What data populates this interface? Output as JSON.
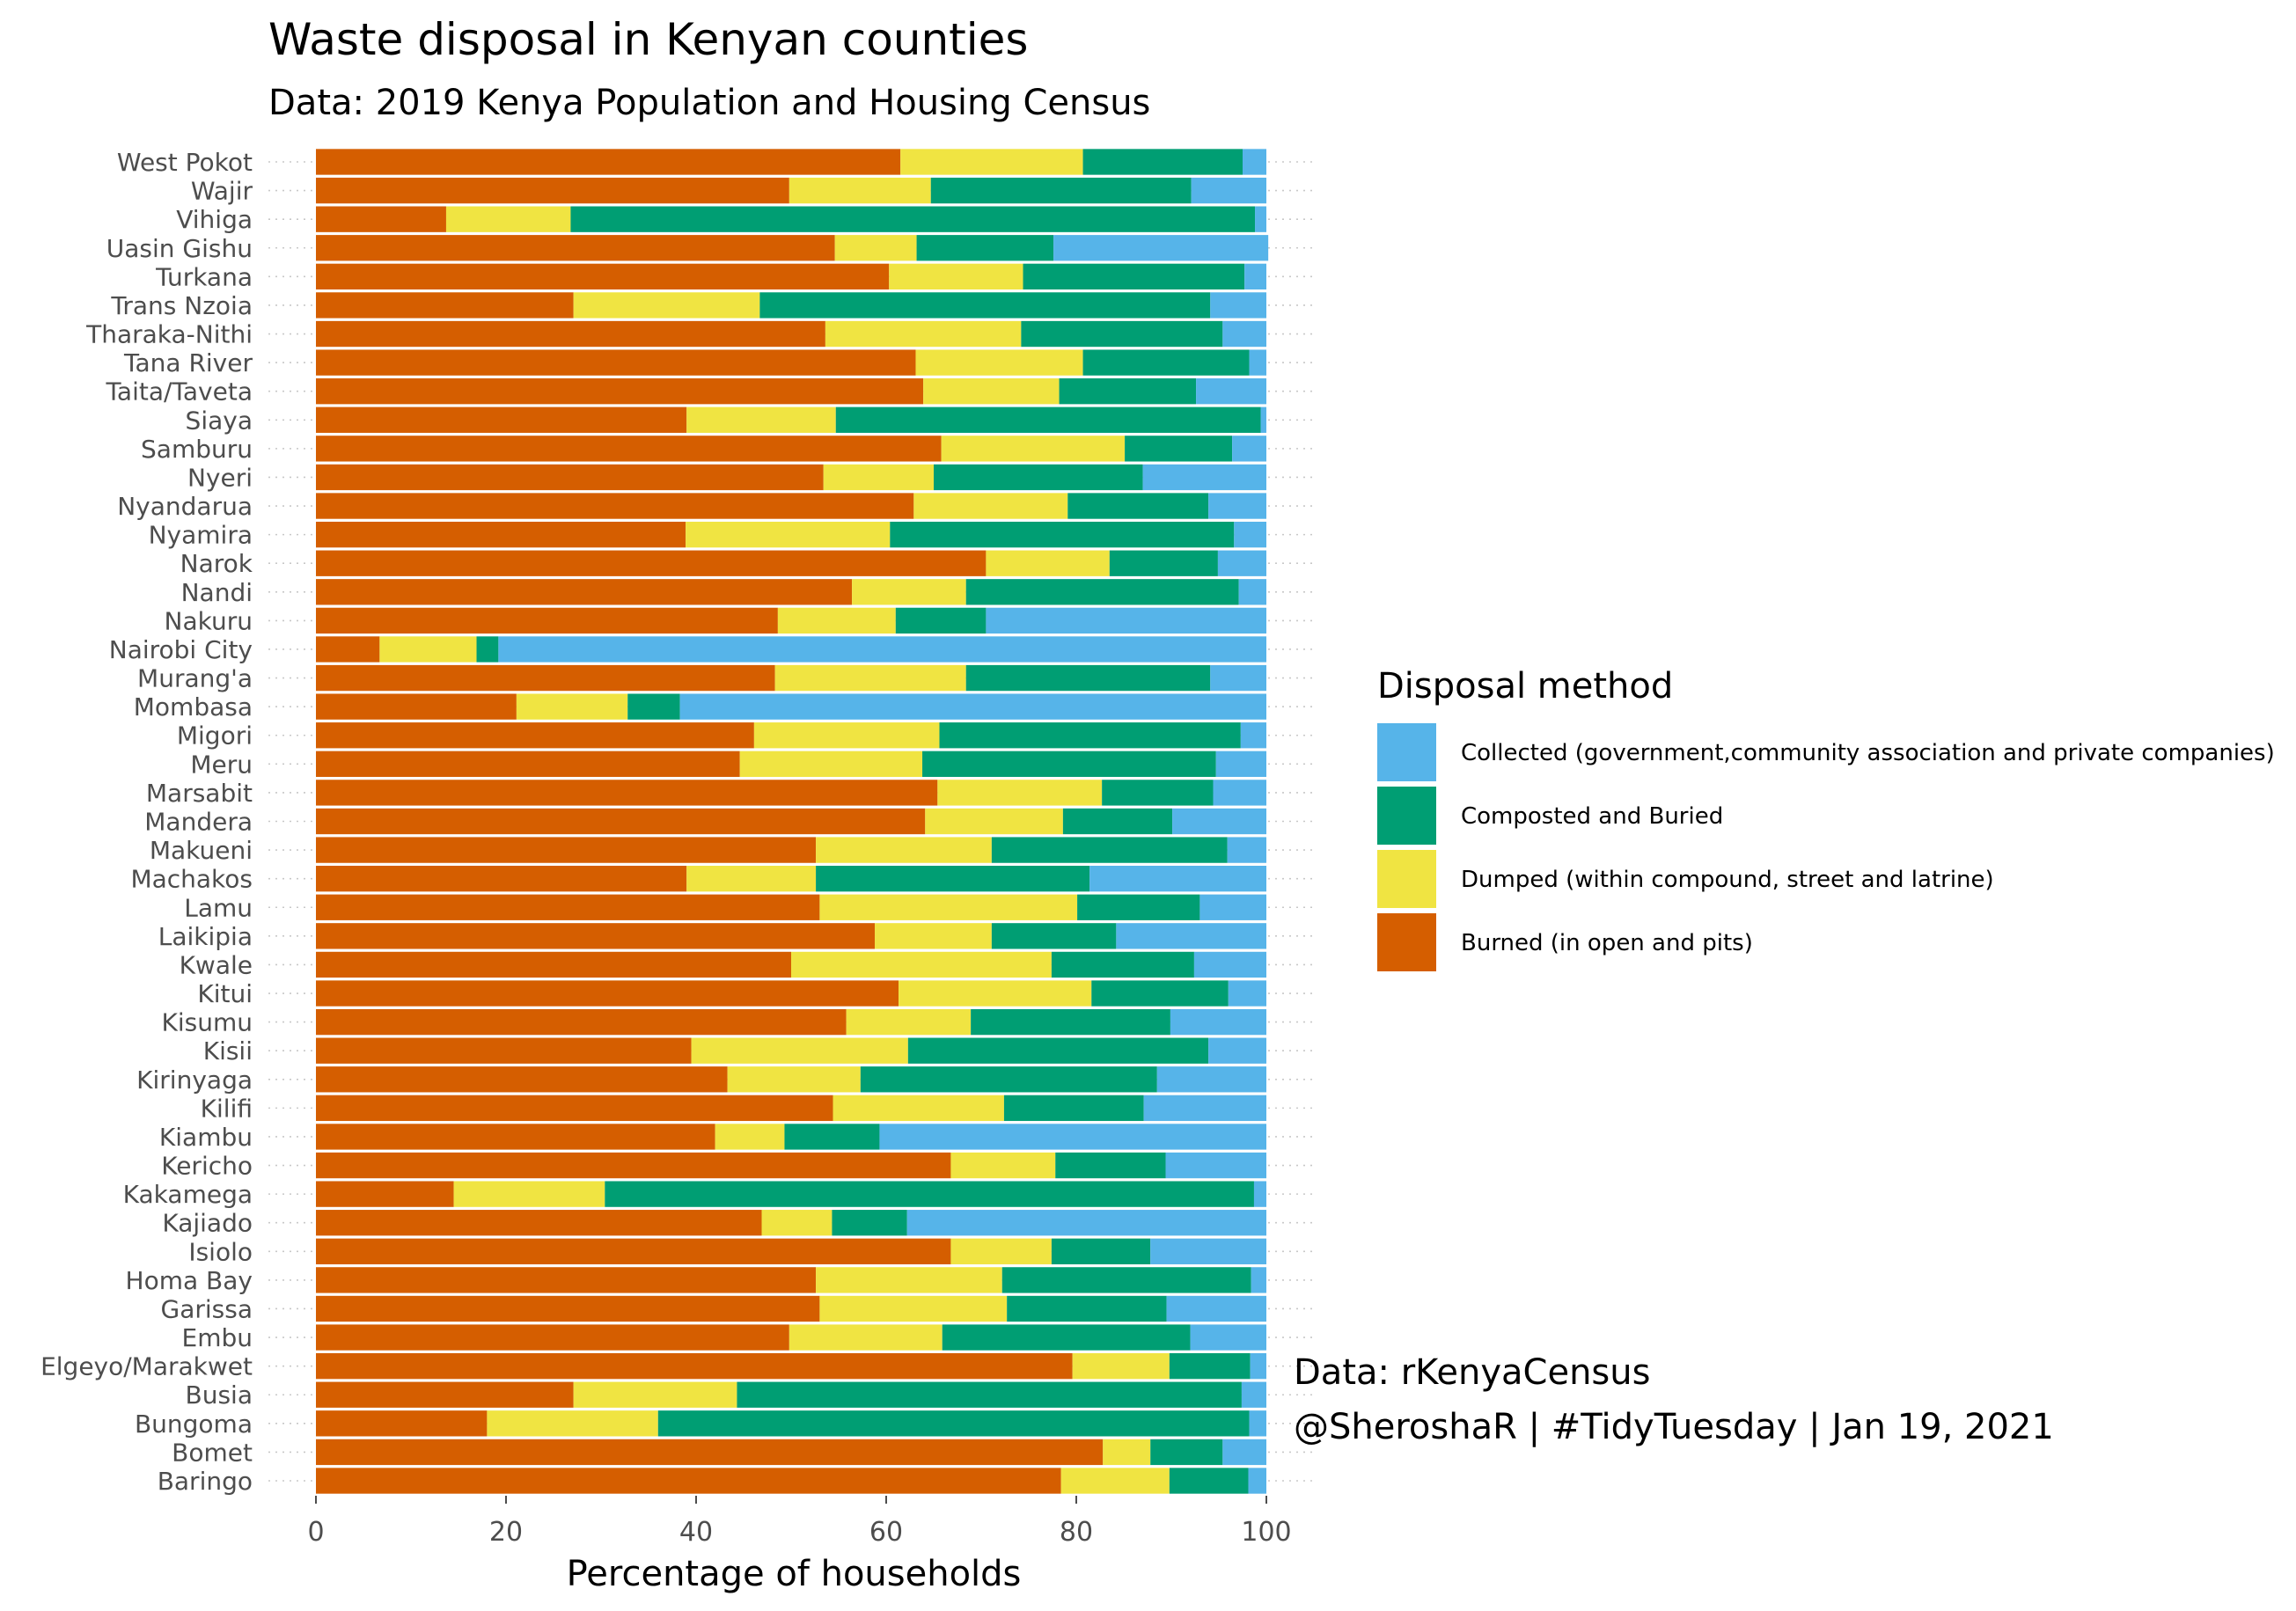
{
  "chart_data": {
    "type": "bar",
    "orientation": "horizontal",
    "stacked": true,
    "title": "Waste disposal in Kenyan counties",
    "subtitle": "Data: 2019 Kenya Population and Housing Census",
    "xlabel": "Percentage of households",
    "ylabel": "",
    "xlim": [
      0,
      100
    ],
    "xticks": [
      "0",
      "20",
      "40",
      "60",
      "80",
      "100"
    ],
    "legend": {
      "title": "Disposal method",
      "position": "right",
      "entries": [
        {
          "label": "Collected (government,community association and private companies)",
          "color": "#56B4E9"
        },
        {
          "label": "Composted and Buried",
          "color": "#009E73"
        },
        {
          "label": "Dumped (within compound, street and latrine)",
          "color": "#F0E442"
        },
        {
          "label": "Burned (in open and pits)",
          "color": "#D55E00"
        }
      ]
    },
    "caption": [
      "Data: rKenyaCensus",
      "@SheroshaR | #TidyTuesday | Jan 19, 2021"
    ],
    "categories": [
      "West Pokot",
      "Wajir",
      "Vihiga",
      "Uasin Gishu",
      "Turkana",
      "Trans Nzoia",
      "Tharaka-Nithi",
      "Tana River",
      "Taita/Taveta",
      "Siaya",
      "Samburu",
      "Nyeri",
      "Nyandarua",
      "Nyamira",
      "Narok",
      "Nandi",
      "Nakuru",
      "Nairobi City",
      "Murang'a",
      "Mombasa",
      "Migori",
      "Meru",
      "Marsabit",
      "Mandera",
      "Makueni",
      "Machakos",
      "Lamu",
      "Laikipia",
      "Kwale",
      "Kitui",
      "Kisumu",
      "Kisii",
      "Kirinyaga",
      "Kilifi",
      "Kiambu",
      "Kericho",
      "Kakamega",
      "Kajiado",
      "Isiolo",
      "Homa Bay",
      "Garissa",
      "Embu",
      "Elgeyo/Marakwet",
      "Busia",
      "Bungoma",
      "Bomet",
      "Baringo"
    ],
    "series": [
      {
        "name": "Burned (in open and pits)",
        "color": "#D55E00",
        "values": [
          61.5,
          49.8,
          13.7,
          54.6,
          60.3,
          27.1,
          53.6,
          63.1,
          63.9,
          39.0,
          65.8,
          53.4,
          62.9,
          38.9,
          70.5,
          56.4,
          48.6,
          6.7,
          48.3,
          21.1,
          46.1,
          44.6,
          65.4,
          64.1,
          52.6,
          39.0,
          53.0,
          58.8,
          50.0,
          61.3,
          55.8,
          39.5,
          43.3,
          54.4,
          42.0,
          66.8,
          14.5,
          46.9,
          66.8,
          52.6,
          53.0,
          49.8,
          79.6,
          27.1,
          18.0,
          82.8,
          78.4
        ]
      },
      {
        "name": "Dumped (within compound, street and latrine)",
        "color": "#F0E442",
        "values": [
          19.2,
          14.9,
          13.1,
          8.6,
          14.1,
          19.6,
          20.6,
          17.6,
          14.3,
          15.7,
          19.3,
          11.6,
          16.2,
          21.5,
          13.0,
          12.0,
          12.4,
          10.2,
          20.1,
          11.7,
          19.5,
          19.2,
          17.3,
          14.5,
          18.5,
          13.6,
          27.1,
          12.3,
          27.4,
          20.3,
          13.1,
          22.8,
          14.0,
          18.0,
          7.3,
          11.0,
          15.9,
          7.4,
          10.6,
          19.6,
          19.7,
          16.1,
          10.2,
          17.2,
          18.0,
          5.0,
          11.4
        ]
      },
      {
        "name": "Composted and Buried",
        "color": "#009E73",
        "values": [
          16.8,
          27.4,
          72.0,
          14.4,
          23.3,
          47.4,
          21.2,
          17.5,
          14.4,
          44.7,
          11.3,
          22.0,
          14.8,
          36.2,
          11.4,
          28.7,
          9.5,
          2.3,
          25.7,
          5.5,
          31.7,
          30.9,
          11.7,
          11.5,
          24.8,
          28.8,
          12.9,
          13.1,
          15.0,
          14.4,
          21.0,
          31.6,
          31.2,
          14.7,
          10.0,
          11.6,
          68.3,
          7.9,
          10.4,
          26.2,
          16.8,
          26.1,
          8.5,
          53.1,
          62.2,
          7.6,
          8.3
        ]
      },
      {
        "name": "Collected (government,community association and private companies)",
        "color": "#56B4E9",
        "values": [
          2.5,
          7.9,
          1.2,
          22.6,
          2.3,
          5.9,
          4.6,
          1.8,
          7.4,
          0.6,
          3.6,
          13.0,
          6.1,
          3.4,
          5.1,
          2.9,
          29.5,
          80.8,
          5.9,
          61.7,
          2.7,
          5.3,
          5.6,
          9.9,
          4.1,
          18.6,
          7.0,
          15.8,
          7.6,
          4.0,
          10.1,
          6.1,
          11.5,
          12.9,
          40.7,
          10.6,
          1.3,
          37.8,
          12.2,
          1.6,
          10.5,
          8.0,
          1.7,
          2.6,
          1.8,
          4.6,
          1.9
        ]
      }
    ]
  }
}
